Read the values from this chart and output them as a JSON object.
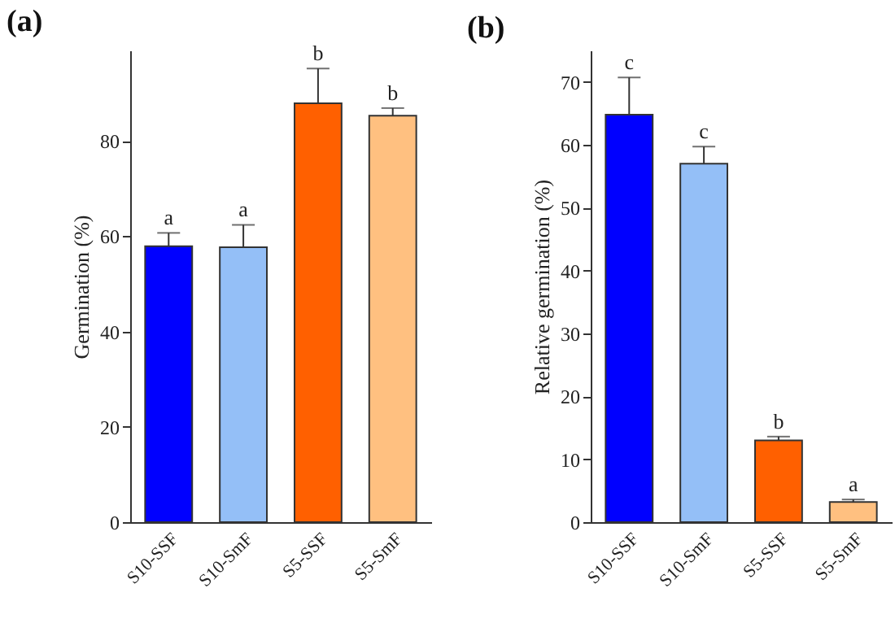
{
  "chart_data": [
    {
      "type": "bar",
      "title": "(a)",
      "ylabel": "Germination (%)",
      "categories": [
        "S10-SSF",
        "S10-SmF",
        "S5-SSF",
        "S5-SmF"
      ],
      "values": [
        57.9,
        57.7,
        87.9,
        85.3
      ],
      "errors": [
        2.8,
        4.7,
        7.3,
        1.6
      ],
      "colors": [
        "#0000ff",
        "#94bff7",
        "#ff6000",
        "#ffc080"
      ],
      "ylim": [
        0,
        99
      ],
      "yticks": [
        0,
        20,
        40,
        60,
        80
      ],
      "annotations": [
        {
          "text": "a",
          "x": "S10-SSF",
          "y": 60.7
        },
        {
          "text": "a",
          "x": "S10-SmF",
          "y": 62.4
        },
        {
          "text": "b",
          "x": "S5-SSF",
          "y": 95.2
        },
        {
          "text": "b",
          "x": "S5-SmF",
          "y": 86.9
        }
      ]
    },
    {
      "type": "bar",
      "title": "(b)",
      "ylabel": "Relative germination (%)",
      "categories": [
        "S10-SSF",
        "S10-SmF",
        "S5-SSF",
        "S5-SmF"
      ],
      "values": [
        64.8,
        57.0,
        13.0,
        3.2
      ],
      "errors": [
        5.9,
        2.7,
        0.6,
        0.4
      ],
      "colors": [
        "#0000ff",
        "#94bff7",
        "#ff6000",
        "#ffc080"
      ],
      "ylim": [
        0,
        75
      ],
      "yticks": [
        0,
        10,
        20,
        30,
        40,
        50,
        60,
        70
      ],
      "annotations": [
        {
          "text": "c",
          "x": "S10-SSF",
          "y": 70.7
        },
        {
          "text": "c",
          "x": "S10-SmF",
          "y": 59.7
        },
        {
          "text": "b",
          "x": "S5-SSF",
          "y": 13.6
        },
        {
          "text": "a",
          "x": "S5-SmF",
          "y": 3.6
        }
      ]
    }
  ]
}
